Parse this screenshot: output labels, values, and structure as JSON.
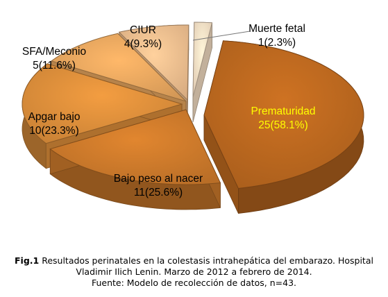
{
  "chart_data": {
    "type": "pie",
    "style": "3d-exploded",
    "slices": [
      {
        "name": "Prematuridad",
        "count": 25,
        "percent": "58.1%",
        "color": "#B8661E",
        "label_color": "#FFFF00"
      },
      {
        "name": "Bajo peso al nacer",
        "count": 11,
        "percent": "25.6%",
        "color": "#C9782A",
        "label_color": "#000000"
      },
      {
        "name": "Apgar  bajo",
        "count": 10,
        "percent": "23.3%",
        "color": "#D98C3A",
        "label_color": "#000000"
      },
      {
        "name": "SFA/Meconio",
        "count": 5,
        "percent": "11.6%",
        "color": "#E4A45E",
        "label_color": "#000000"
      },
      {
        "name": "CIUR",
        "count": 4,
        "percent": "9.3%",
        "color": "#EBBB8C",
        "label_color": "#000000"
      },
      {
        "name": "Muerte fetal",
        "count": 1,
        "percent": "2.3%",
        "color": "#F3DCC2",
        "label_color": "#000000"
      }
    ],
    "total": 43
  },
  "caption": {
    "fig_label": "Fig.1",
    "line1": " Resultados perinatales en la colestasis intrahepática del embarazo. Hospital",
    "line2": "Vladimir Ilich Lenin. Marzo de 2012 a febrero de 2014.",
    "line3": "Fuente: Modelo de recolección de datos, n=43."
  }
}
